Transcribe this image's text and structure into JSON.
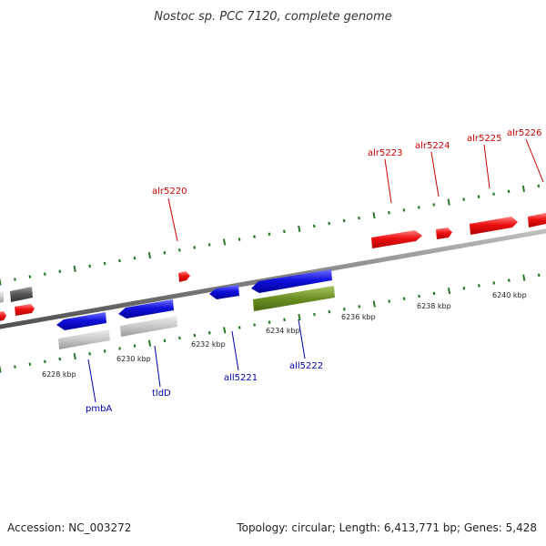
{
  "title": "Nostoc sp. PCC 7120, complete genome",
  "footer": {
    "accession": "Accession: NC_003272",
    "summary": "Topology: circular; Length: 6,413,771 bp; Genes: 5,428"
  },
  "colors": {
    "forward_gene": "#ee1111",
    "reverse_gene": "#1111dd",
    "rna_gene": "#c8c8c8",
    "dark_gene": "#555555",
    "green_feature": "#6b8e23",
    "backbone": "#808080",
    "tick": "#2a7a2a",
    "forward_label": "#cc0000",
    "reverse_label": "#0000aa"
  },
  "scale_labels": [
    "6228 kbp",
    "6230 kbp",
    "6232 kbp",
    "6234 kbp",
    "6236 kbp",
    "6238 kbp",
    "6240 kbp"
  ],
  "gene_labels": [
    {
      "name": "alr5220",
      "strand": "forward"
    },
    {
      "name": "alr5223",
      "strand": "forward"
    },
    {
      "name": "alr5224",
      "strand": "forward"
    },
    {
      "name": "alr5225",
      "strand": "forward"
    },
    {
      "name": "alr5226",
      "strand": "forward"
    },
    {
      "name": "pmbA",
      "strand": "reverse"
    },
    {
      "name": "tldD",
      "strand": "reverse"
    },
    {
      "name": "all5221",
      "strand": "reverse"
    },
    {
      "name": "all5222",
      "strand": "reverse"
    }
  ]
}
